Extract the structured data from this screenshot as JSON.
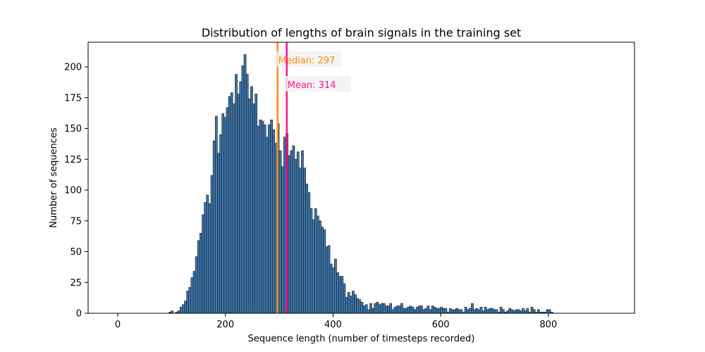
{
  "chart_data": {
    "type": "bar",
    "title": "Distribution of lengths of brain signals in the training set",
    "xlabel": "Sequence length (number of timesteps recorded)",
    "ylabel": "Number of sequences",
    "xlim": [
      -55,
      960
    ],
    "ylim": [
      0,
      220
    ],
    "xticks": [
      0,
      200,
      400,
      600,
      800
    ],
    "yticks": [
      0,
      25,
      50,
      75,
      100,
      125,
      150,
      175,
      200
    ],
    "grid": false,
    "bar_color": "#3a75aa",
    "bar_edge_color": "#1a1a1a",
    "bins": {
      "start": 95,
      "width": 4.1,
      "counts": [
        1,
        2,
        0,
        1,
        2,
        5,
        7,
        10,
        18,
        21,
        29,
        34,
        46,
        59,
        65,
        80,
        90,
        96,
        89,
        112,
        140,
        160,
        130,
        145,
        162,
        159,
        167,
        176,
        179,
        170,
        194,
        178,
        188,
        201,
        210,
        194,
        174,
        184,
        170,
        178,
        152,
        157,
        156,
        153,
        143,
        153,
        157,
        149,
        138,
        154,
        132,
        119,
        143,
        146,
        128,
        132,
        136,
        125,
        131,
        118,
        132,
        118,
        105,
        98,
        85,
        76,
        85,
        79,
        75,
        70,
        68,
        54,
        55,
        40,
        37,
        44,
        33,
        30,
        30,
        24,
        13,
        17,
        14,
        18,
        15,
        12,
        11,
        9,
        6,
        7,
        3,
        8,
        4,
        8,
        9,
        7,
        8,
        8,
        6,
        6,
        8,
        3,
        5,
        6,
        6,
        8,
        4,
        4,
        5,
        6,
        5,
        3,
        5,
        6,
        6,
        3,
        4,
        6,
        3,
        6,
        5,
        4,
        4,
        5,
        4,
        4,
        1,
        4,
        3,
        3,
        4,
        3,
        3,
        1,
        5,
        3,
        4,
        8,
        3,
        4,
        3,
        5,
        2,
        5,
        3,
        4,
        4,
        3,
        3,
        1,
        5,
        3,
        1,
        2,
        4,
        3,
        2,
        3,
        3,
        2,
        4,
        2,
        4,
        1,
        5,
        3,
        1,
        3,
        1,
        1,
        1,
        3,
        3,
        1
      ]
    },
    "reference_lines": [
      {
        "name": "Median",
        "label": "Median: 297",
        "x": 297,
        "color": "#ff8c00"
      },
      {
        "name": "Mean",
        "label": "Mean: 314",
        "x": 314,
        "color": "#ff1493"
      }
    ]
  }
}
